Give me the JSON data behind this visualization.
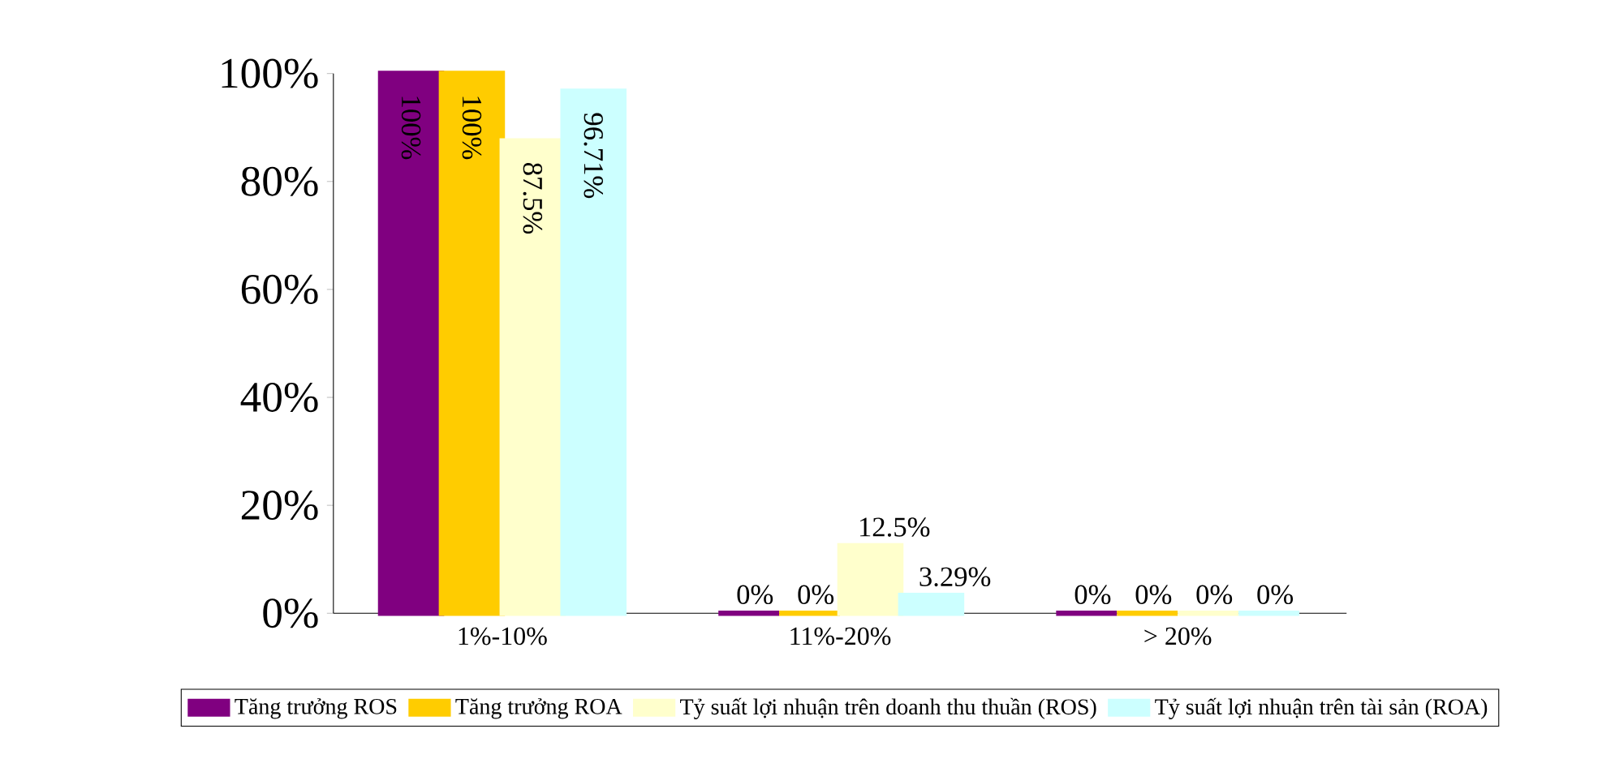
{
  "chart_data": {
    "type": "bar",
    "categories": [
      "1%-10%",
      "11%-20%",
      "> 20%"
    ],
    "series": [
      {
        "name": "Tăng trưởng ROS",
        "color": "#800080",
        "values": [
          100,
          0,
          0
        ],
        "value_labels": [
          "100%",
          "0%",
          "0%"
        ]
      },
      {
        "name": "Tăng trưởng ROA",
        "color": "#ffcc00",
        "values": [
          100,
          0,
          0
        ],
        "value_labels": [
          "100%",
          "0%",
          "0%"
        ]
      },
      {
        "name": "Tỷ suất lợi nhuận trên doanh thu thuần (ROS)",
        "color": "#ffffcc",
        "values": [
          87.5,
          12.5,
          0
        ],
        "value_labels": [
          "87.5%",
          "12.5%",
          "0%"
        ]
      },
      {
        "name": "Tỷ suất lợi nhuận trên tài sản (ROA)",
        "color": "#ccffff",
        "values": [
          96.71,
          3.29,
          0
        ],
        "value_labels": [
          "96.71%",
          "3.29%",
          "0%"
        ]
      }
    ],
    "ylim": [
      0,
      100
    ],
    "yticks": [
      {
        "value": 0,
        "label": "0%"
      },
      {
        "value": 20,
        "label": "20%"
      },
      {
        "value": 40,
        "label": "40%"
      },
      {
        "value": 60,
        "label": "60%"
      },
      {
        "value": 80,
        "label": "80%"
      },
      {
        "value": 100,
        "label": "100%"
      }
    ],
    "legend": "bottom",
    "grid": false
  }
}
